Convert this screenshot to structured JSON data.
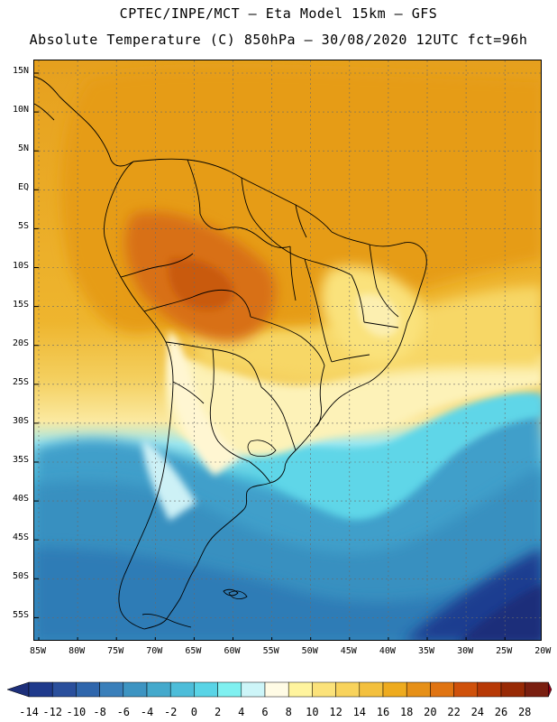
{
  "header": {
    "line1": "CPTEC/INPE/MCT —  Eta Model 15km — GFS",
    "line2": "Absolute Temperature (C) 850hPa — 30/08/2020 12UTC fct=96h"
  },
  "map": {
    "lat_labels": [
      "15N",
      "10N",
      "5N",
      "EQ",
      "5S",
      "10S",
      "15S",
      "20S",
      "25S",
      "30S",
      "35S",
      "40S",
      "45S",
      "50S",
      "55S"
    ],
    "lon_labels": [
      "85W",
      "80W",
      "75W",
      "70W",
      "65W",
      "60W",
      "55W",
      "50W",
      "45W",
      "40W",
      "35W",
      "30W",
      "25W",
      "20W"
    ],
    "lat_values": [
      15,
      10,
      5,
      0,
      -5,
      -10,
      -15,
      -20,
      -25,
      -30,
      -35,
      -40,
      -45,
      -50,
      -55
    ],
    "lon_values": [
      -85,
      -80,
      -75,
      -70,
      -65,
      -60,
      -55,
      -50,
      -45,
      -40,
      -35,
      -30,
      -25,
      -20
    ]
  },
  "colorbar": {
    "labels": [
      "-14",
      "-12",
      "-10",
      "-8",
      "-6",
      "-4",
      "-2",
      "0",
      "2",
      "4",
      "6",
      "8",
      "10",
      "12",
      "14",
      "16",
      "18",
      "20",
      "22",
      "24",
      "26",
      "28"
    ],
    "colors": [
      "#1f3a8c",
      "#2a4f9c",
      "#2f66ac",
      "#3a7fba",
      "#3d94c2",
      "#44a9cc",
      "#4dbdd9",
      "#59d4e6",
      "#7ff0f0",
      "#cdf5f8",
      "#fffbe5",
      "#fff49e",
      "#fbe27a",
      "#f8d35c",
      "#f3c03e",
      "#eeab1e",
      "#e69018",
      "#e07412",
      "#cf510b",
      "#b73906",
      "#982a05",
      "#7a1f10"
    ],
    "arrow_left": "#1d2f7a",
    "arrow_right": "#8a0016"
  },
  "colors": {
    "ocean_cold": "#2f7fba",
    "land_warm": "#e09a1c"
  }
}
